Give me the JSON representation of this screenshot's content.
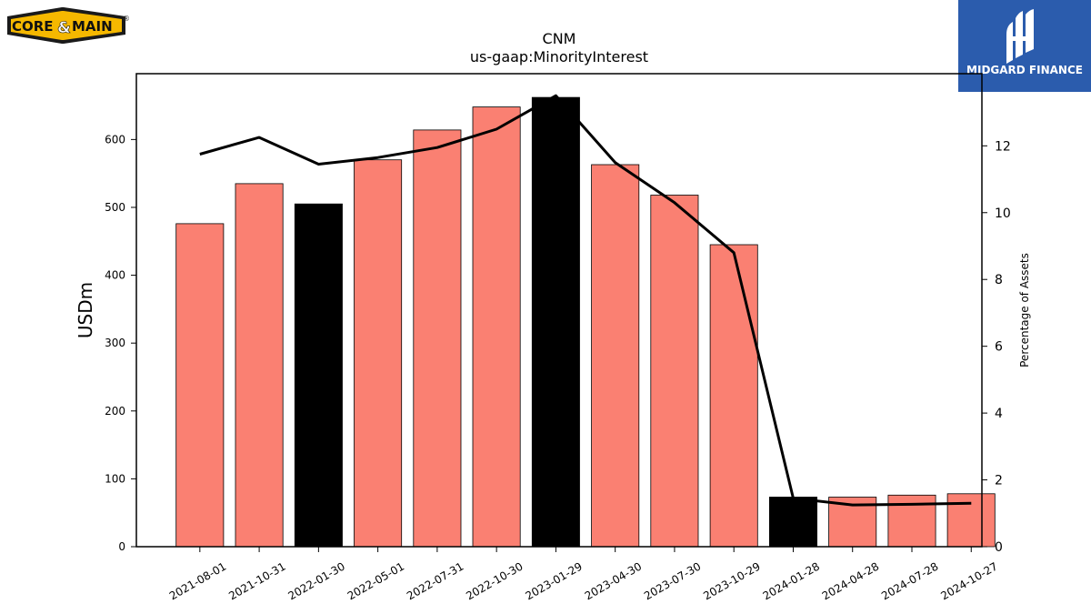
{
  "brand_left": {
    "text_core": "CORE",
    "text_amp": "&",
    "text_main": "MAIN",
    "registered": "®",
    "colors": {
      "band": "#1a1a1a",
      "fill": "#f5b800",
      "text": "#111111"
    }
  },
  "brand_right": {
    "name": "MIDGARD FINANCE",
    "icon": "midgard-mark-icon",
    "colors": {
      "background": "#2b5cad",
      "foreground": "#ffffff"
    }
  },
  "chart_data": {
    "type": "bar",
    "title": "CNM",
    "subtitle": "us-gaap:MinorityInterest",
    "ylabel": "USDm",
    "ylabel_right": "Percentage of Assets",
    "categories": [
      "2021-08-01",
      "2021-10-31",
      "2022-01-30",
      "2022-05-01",
      "2022-07-31",
      "2022-10-30",
      "2023-01-29",
      "2023-04-30",
      "2023-07-30",
      "2023-10-29",
      "2024-01-28",
      "2024-04-28",
      "2024-07-28",
      "2024-10-27"
    ],
    "series": [
      {
        "type": "bar",
        "axis": "left",
        "values": [
          476,
          535,
          505,
          570,
          614,
          648,
          662,
          563,
          518,
          445,
          73,
          73,
          76,
          78
        ],
        "highlight": [
          false,
          false,
          true,
          false,
          false,
          false,
          true,
          false,
          false,
          false,
          true,
          false,
          false,
          false
        ],
        "color": "#fa8072",
        "highlight_color": "#000000"
      },
      {
        "type": "line",
        "axis": "right",
        "values": [
          11.75,
          12.25,
          11.45,
          11.65,
          11.95,
          12.5,
          13.5,
          11.5,
          10.3,
          8.8,
          1.45,
          1.25,
          1.27,
          1.3
        ],
        "color": "#000000"
      }
    ],
    "ylim": [
      0,
      697
    ],
    "ylim_right": [
      0,
      14.16
    ],
    "yticks": [
      0,
      100,
      200,
      300,
      400,
      500,
      600
    ],
    "yticks_right": [
      0,
      2,
      4,
      6,
      8,
      10,
      12
    ],
    "grid": false,
    "legend": "none"
  }
}
